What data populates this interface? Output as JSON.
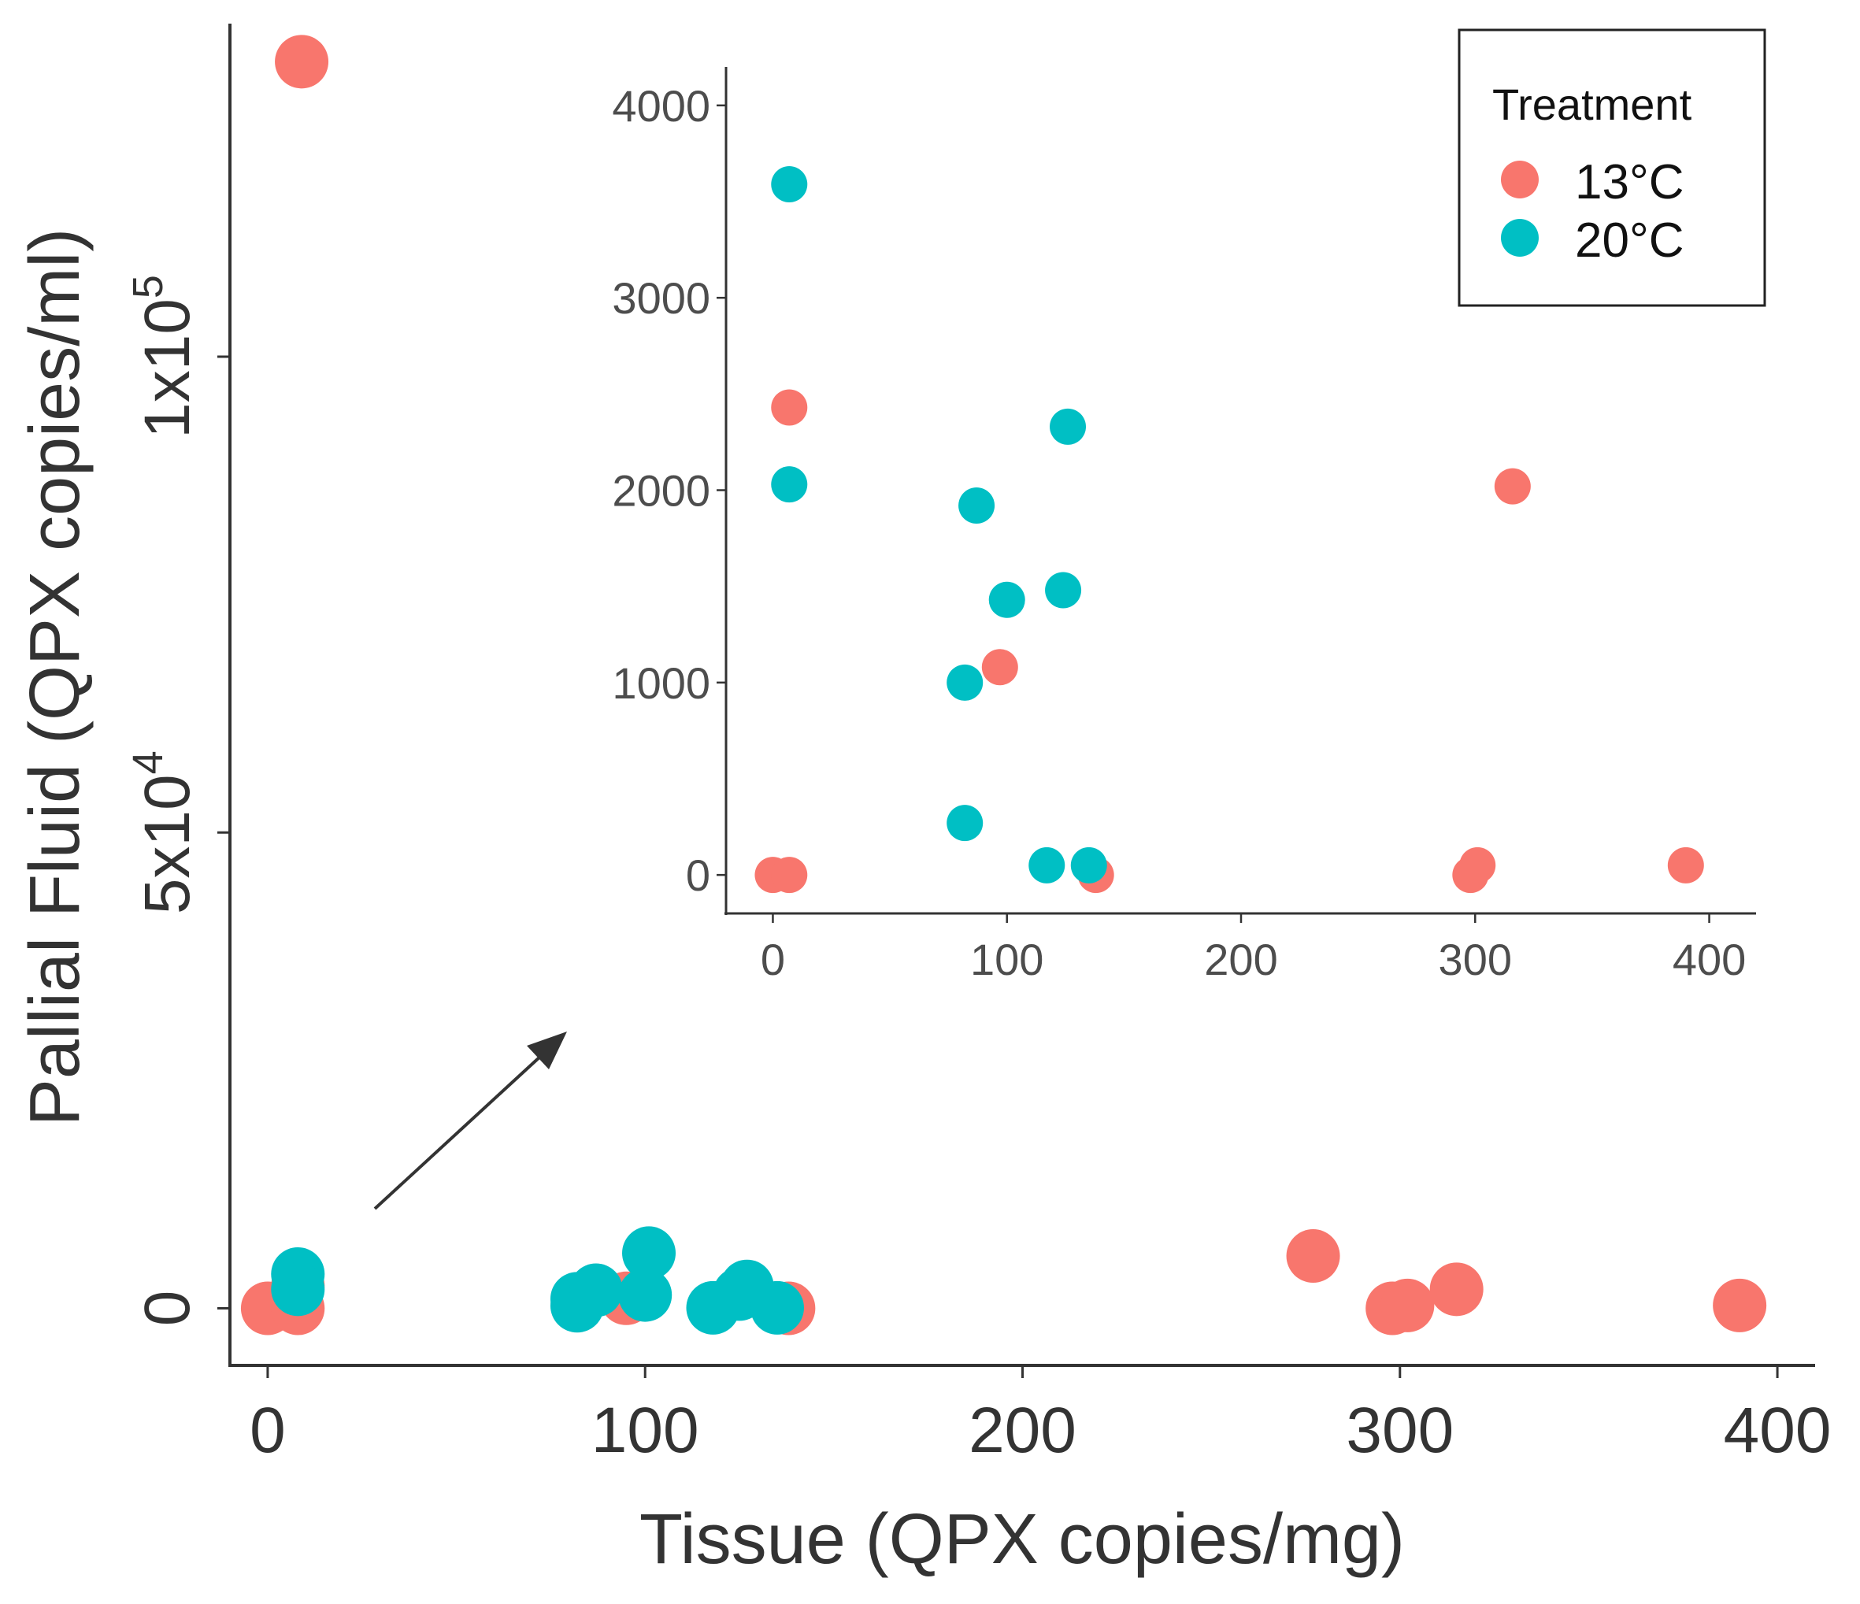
{
  "colors": {
    "13C": "#F8766D",
    "20C": "#00BFC4"
  },
  "chart_data": [
    {
      "id": "main",
      "type": "scatter",
      "xlabel": "Tissue (QPX copies/mg)",
      "ylabel": "Pallial Fluid (QPX copies/ml)",
      "xlim": [
        -10,
        410
      ],
      "ylim": [
        -6000,
        135000
      ],
      "x_ticks": [
        0,
        100,
        200,
        300,
        400
      ],
      "x_tick_labels": [
        "0",
        "100",
        "200",
        "300",
        "400"
      ],
      "y_ticks": [
        0,
        50000,
        100000
      ],
      "y_tick_labels": [
        {
          "base": "0",
          "exp": ""
        },
        {
          "base": "5x10",
          "exp": "4"
        },
        {
          "base": "1x10",
          "exp": "5"
        }
      ],
      "series": [
        {
          "name": "13°C",
          "color_key": "13C",
          "points": [
            {
              "x": 0,
              "y": 0
            },
            {
              "x": 8,
              "y": 0
            },
            {
              "x": 8,
              "y": 2400
            },
            {
              "x": 9,
              "y": 131000
            },
            {
              "x": 95,
              "y": 1050
            },
            {
              "x": 138,
              "y": 0
            },
            {
              "x": 277,
              "y": 5500
            },
            {
              "x": 298,
              "y": 0
            },
            {
              "x": 302,
              "y": 300
            },
            {
              "x": 315,
              "y": 2000
            },
            {
              "x": 390,
              "y": 300
            }
          ]
        },
        {
          "name": "20°C",
          "color_key": "20C",
          "points": [
            {
              "x": 8,
              "y": 3600
            },
            {
              "x": 8,
              "y": 2000
            },
            {
              "x": 82,
              "y": 1000
            },
            {
              "x": 82,
              "y": 270
            },
            {
              "x": 87,
              "y": 1900
            },
            {
              "x": 100,
              "y": 1400
            },
            {
              "x": 101,
              "y": 5800
            },
            {
              "x": 118,
              "y": 50
            },
            {
              "x": 125,
              "y": 1500
            },
            {
              "x": 127,
              "y": 2300
            },
            {
              "x": 135,
              "y": 50
            }
          ]
        }
      ]
    },
    {
      "id": "inset",
      "type": "scatter",
      "xlim": [
        -20,
        420
      ],
      "ylim": [
        -200,
        4200
      ],
      "x_ticks": [
        0,
        100,
        200,
        300,
        400
      ],
      "x_tick_labels": [
        "0",
        "100",
        "200",
        "300",
        "400"
      ],
      "y_ticks": [
        0,
        1000,
        2000,
        3000,
        4000
      ],
      "y_tick_labels": [
        "0",
        "1000",
        "2000",
        "3000",
        "4000"
      ],
      "series": [
        {
          "name": "13°C",
          "color_key": "13C",
          "points": [
            {
              "x": 0,
              "y": 0
            },
            {
              "x": 7,
              "y": 0
            },
            {
              "x": 7,
              "y": 2430
            },
            {
              "x": 97,
              "y": 1080
            },
            {
              "x": 138,
              "y": 0
            },
            {
              "x": 298,
              "y": 0
            },
            {
              "x": 301,
              "y": 50
            },
            {
              "x": 316,
              "y": 2020
            },
            {
              "x": 390,
              "y": 50
            }
          ]
        },
        {
          "name": "20°C",
          "color_key": "20C",
          "points": [
            {
              "x": 7,
              "y": 3590
            },
            {
              "x": 7,
              "y": 2030
            },
            {
              "x": 82,
              "y": 1000
            },
            {
              "x": 82,
              "y": 270
            },
            {
              "x": 87,
              "y": 1920
            },
            {
              "x": 100,
              "y": 1430
            },
            {
              "x": 117,
              "y": 50
            },
            {
              "x": 124,
              "y": 1480
            },
            {
              "x": 126,
              "y": 2330
            },
            {
              "x": 135,
              "y": 50
            }
          ]
        }
      ]
    }
  ],
  "legend": {
    "title": "Treatment",
    "items": [
      {
        "label": "13°C",
        "color_key": "13C"
      },
      {
        "label": "20°C",
        "color_key": "20C"
      }
    ]
  }
}
